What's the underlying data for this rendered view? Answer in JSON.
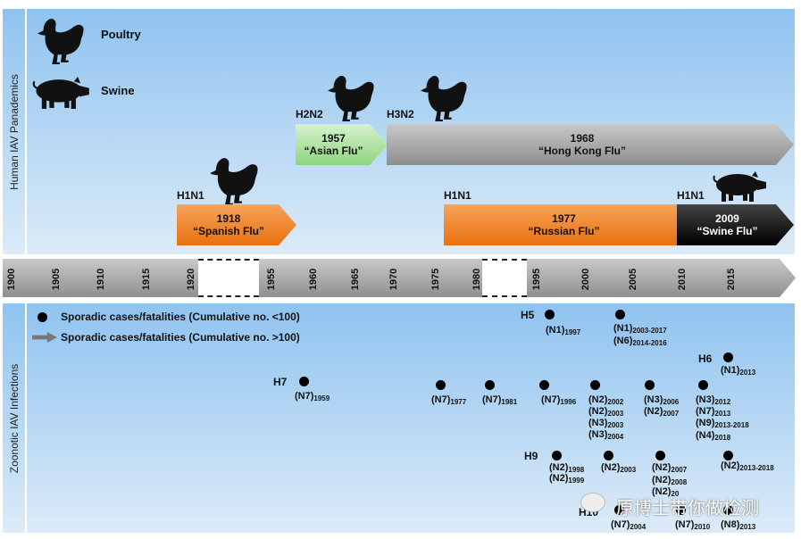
{
  "human_panel": {
    "title": "Human IAV Panademics",
    "legend": [
      {
        "label": "Poultry",
        "icon": "chicken-icon"
      },
      {
        "label": "Swine",
        "icon": "pig-icon"
      }
    ],
    "pandemics": [
      {
        "subtype": "H2N2",
        "year": "1957",
        "name": "“Asian Flu”",
        "color": "#a8e29a",
        "host": "chicken"
      },
      {
        "subtype": "H3N2",
        "year": "1968",
        "name": "“Hong Kong Flu”",
        "color": "#a6a6a6",
        "host": "chicken"
      },
      {
        "subtype": "H1N1",
        "year": "1918",
        "name": "“Spanish Flu”",
        "color": "#f07f1c",
        "host": "chicken"
      },
      {
        "subtype": "H1N1",
        "year": "1977",
        "name": "“Russian Flu”",
        "color": "#f07f1c",
        "host": ""
      },
      {
        "subtype": "H1N1",
        "year": "2009",
        "name": "“Swine Flu”",
        "color": "#111111",
        "host": "pig"
      }
    ]
  },
  "timeline": {
    "ticks": [
      "1900",
      "1905",
      "1910",
      "1915",
      "1920",
      "1955",
      "1960",
      "1965",
      "1970",
      "1975",
      "1980",
      "1995",
      "2000",
      "2005",
      "2010",
      "2015"
    ]
  },
  "zoonotic_panel": {
    "title": "Zoonotic IAV Infections",
    "legend": [
      "Sporadic cases/fatalities (Cumulative no. <100)",
      "Sporadic cases/fatalities (Cumulative no. >100)"
    ],
    "subtypes": [
      "H5",
      "H6",
      "H7",
      "H9",
      "H10"
    ],
    "cases": [
      {
        "n": "(N1)",
        "y": "1997"
      },
      {
        "n": "(N1)",
        "y": "2003-2017"
      },
      {
        "n": "(N6)",
        "y": "2014-2016"
      },
      {
        "n": "(N1)",
        "y": "2013"
      },
      {
        "n": "(N7)",
        "y": "1959"
      },
      {
        "n": "(N7)",
        "y": "1977"
      },
      {
        "n": "(N7)",
        "y": "1981"
      },
      {
        "n": "(N7)",
        "y": "1996"
      },
      {
        "n": "(N2)",
        "y": "2002"
      },
      {
        "n": "(N2)",
        "y": "2003"
      },
      {
        "n": "(N3)",
        "y": "2003"
      },
      {
        "n": "(N3)",
        "y": "2004"
      },
      {
        "n": "(N3)",
        "y": "2006"
      },
      {
        "n": "(N2)",
        "y": "2007"
      },
      {
        "n": "(N3)",
        "y": "2012"
      },
      {
        "n": "(N7)",
        "y": "2013"
      },
      {
        "n": "(N9)",
        "y": "2013-2018"
      },
      {
        "n": "(N4)",
        "y": "2018"
      },
      {
        "n": "(N2)",
        "y": "1998"
      },
      {
        "n": "(N2)",
        "y": "1999"
      },
      {
        "n": "(N2)",
        "y": "2003"
      },
      {
        "n": "(N2)",
        "y": "2007"
      },
      {
        "n": "(N2)",
        "y": "2008"
      },
      {
        "n": "(N2)",
        "y": "20"
      },
      {
        "n": "(N2)",
        "y": "2013-2018"
      },
      {
        "n": "(N7)",
        "y": "2004"
      },
      {
        "n": "(N7)",
        "y": "2010"
      },
      {
        "n": "(N8)",
        "y": "2013"
      }
    ]
  },
  "watermark": "原博士带你做检测"
}
